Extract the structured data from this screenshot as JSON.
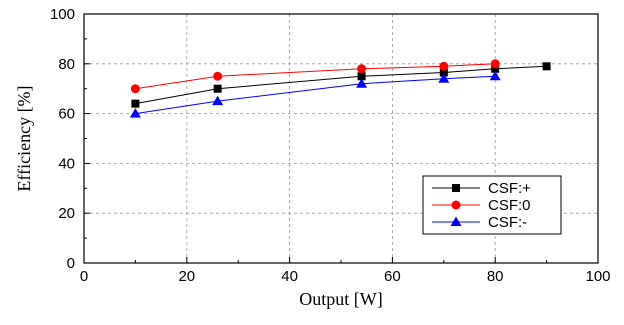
{
  "chart_data": {
    "type": "line",
    "xlabel": "Output [W]",
    "ylabel": "Efficiency [%]",
    "xlim": [
      0,
      100
    ],
    "ylim": [
      0,
      100
    ],
    "xticks": [
      "0",
      "20",
      "40",
      "60",
      "80",
      "100"
    ],
    "yticks": [
      "0",
      "20",
      "40",
      "60",
      "80",
      "100"
    ],
    "grid": "dashed",
    "legend_position": "bottom-right",
    "series": [
      {
        "name": "CSF:+",
        "color": "#000000",
        "marker": "square",
        "x": [
          10,
          26,
          54,
          70,
          80,
          90
        ],
        "y": [
          64,
          70,
          75,
          76.5,
          78,
          79
        ]
      },
      {
        "name": "CSF:0",
        "color": "#ff0000",
        "marker": "circle",
        "x": [
          10,
          26,
          54,
          70,
          80
        ],
        "y": [
          70,
          75,
          78,
          79,
          80
        ]
      },
      {
        "name": "CSF:-",
        "color": "#0000ff",
        "marker": "triangle",
        "x": [
          10,
          26,
          54,
          70,
          80
        ],
        "y": [
          60,
          65,
          72,
          74,
          75
        ]
      }
    ]
  }
}
